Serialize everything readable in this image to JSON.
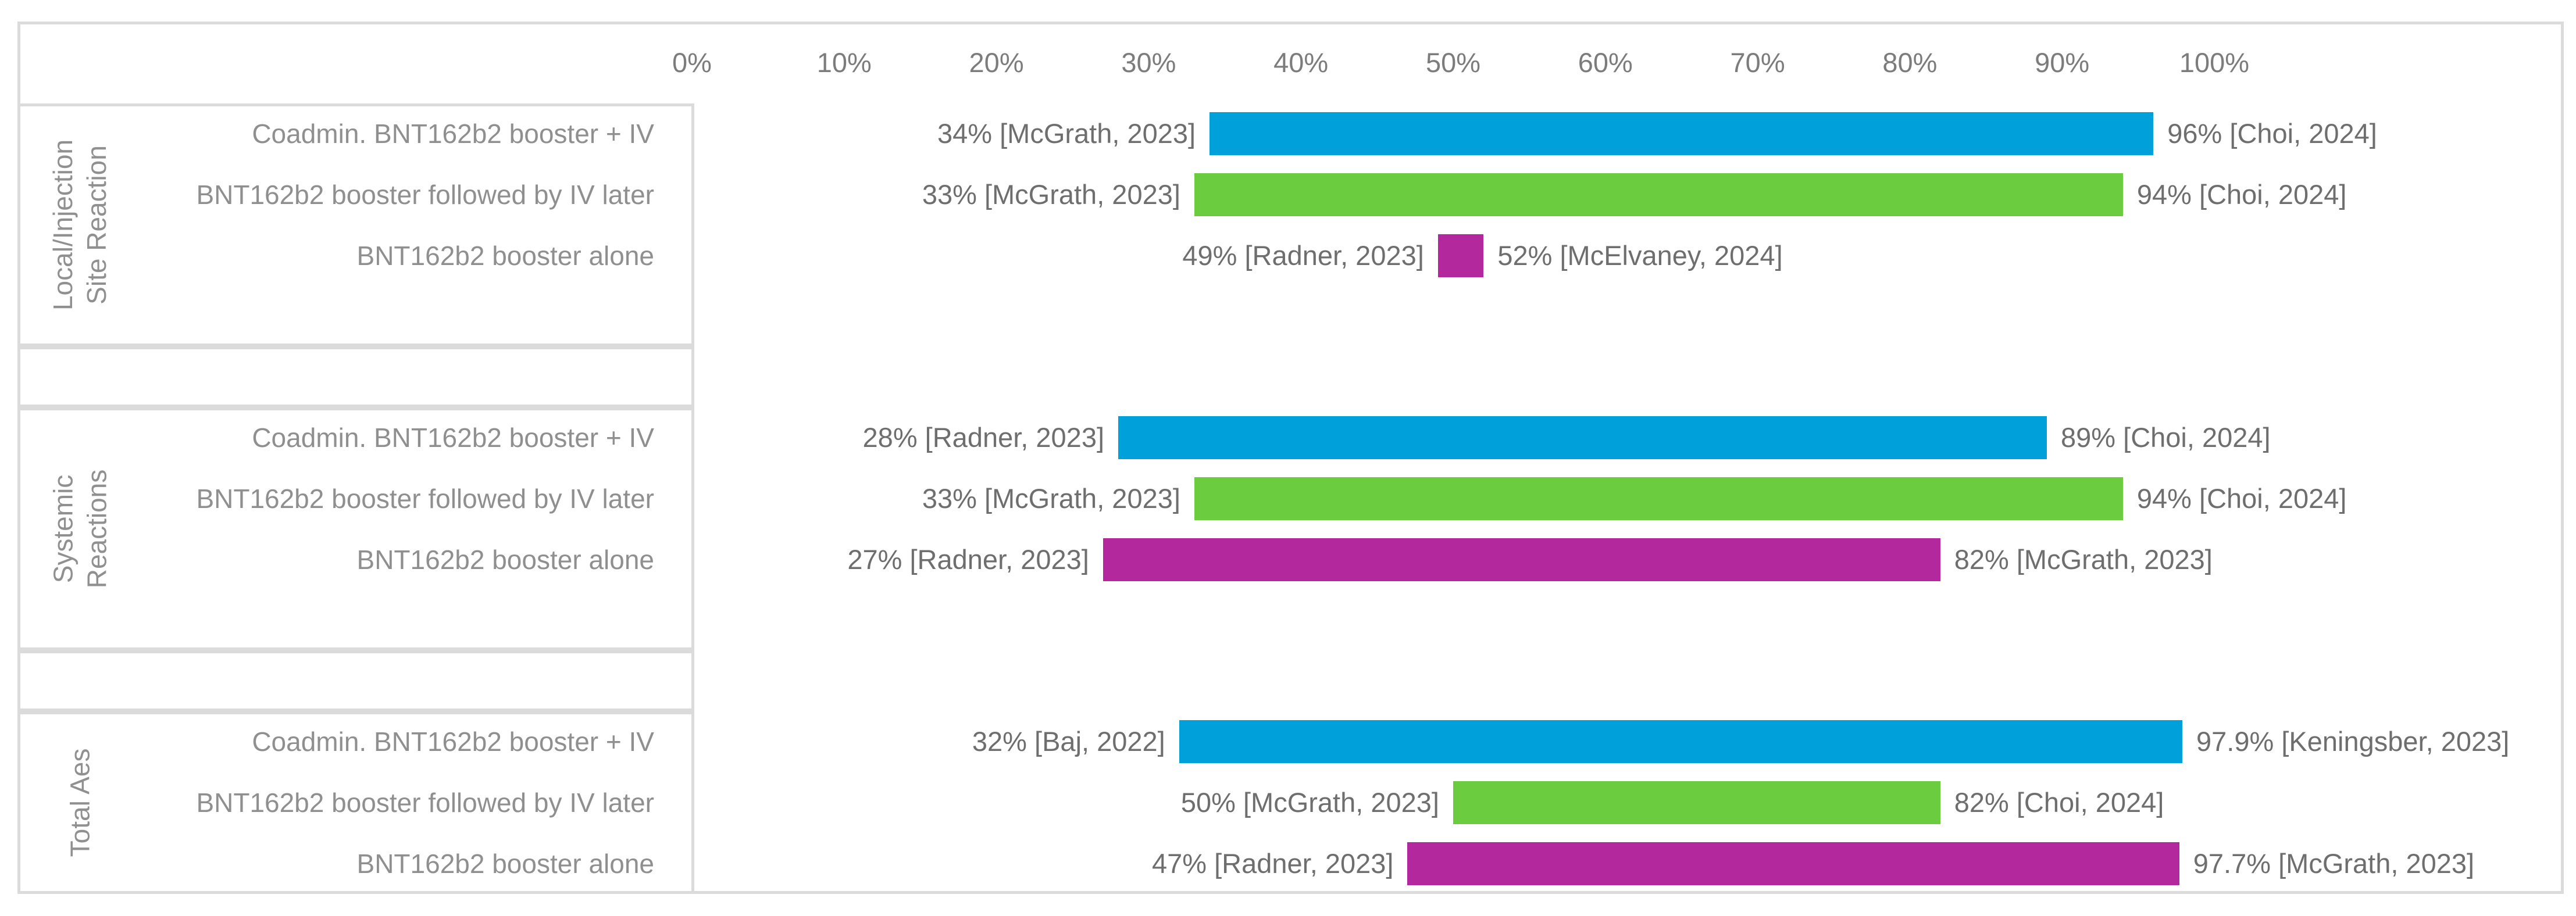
{
  "chart_data": {
    "type": "bar",
    "subtype": "horizontal-range-bar",
    "title": "",
    "legend": "none",
    "axis": {
      "position": "top",
      "unit": "%",
      "min": 0,
      "max": 100,
      "step": 10,
      "tick_labels": [
        "0%",
        "10%",
        "20%",
        "30%",
        "40%",
        "50%",
        "60%",
        "70%",
        "80%",
        "90%",
        "100%"
      ]
    },
    "groups": [
      {
        "label": "Local/Injection Site Reaction",
        "label_lines": [
          "Local/Injection",
          "Site Reaction"
        ],
        "rows": [
          {
            "label": "Coadmin. BNT162b2 booster + IV",
            "series": "coadmin",
            "start": 34,
            "end": 96,
            "start_label": "34% [McGrath, 2023]",
            "end_label": "96% [Choi, 2024]"
          },
          {
            "label": "BNT162b2 booster followed by IV later",
            "series": "followed",
            "start": 33,
            "end": 94,
            "start_label": "33% [McGrath, 2023]",
            "end_label": "94% [Choi, 2024]"
          },
          {
            "label": "BNT162b2 booster alone",
            "series": "alone",
            "start": 49,
            "end": 52,
            "start_label": "49% [Radner, 2023]",
            "end_label": "52% [McElvaney, 2024]"
          }
        ]
      },
      {
        "label": "Systemic Reactions",
        "label_lines": [
          "Systemic",
          "Reactions"
        ],
        "rows": [
          {
            "label": "Coadmin. BNT162b2 booster + IV",
            "series": "coadmin",
            "start": 28,
            "end": 89,
            "start_label": "28% [Radner, 2023]",
            "end_label": "89% [Choi, 2024]"
          },
          {
            "label": "BNT162b2 booster followed by IV later",
            "series": "followed",
            "start": 33,
            "end": 94,
            "start_label": "33% [McGrath, 2023]",
            "end_label": "94% [Choi, 2024]"
          },
          {
            "label": "BNT162b2 booster alone",
            "series": "alone",
            "start": 27,
            "end": 82,
            "start_label": "27% [Radner, 2023]",
            "end_label": "82% [McGrath, 2023]"
          }
        ]
      },
      {
        "label": "Total Aes",
        "label_lines": [
          "Total Aes"
        ],
        "rows": [
          {
            "label": "Coadmin. BNT162b2 booster + IV",
            "series": "coadmin",
            "start": 32,
            "end": 97.9,
            "start_label": "32% [Baj, 2022]",
            "end_label": "97.9% [Keningsber, 2023]"
          },
          {
            "label": "BNT162b2 booster followed by IV later",
            "series": "followed",
            "start": 50,
            "end": 82,
            "start_label": "50% [McGrath, 2023]",
            "end_label": "82% [Choi, 2024]"
          },
          {
            "label": "BNT162b2 booster alone",
            "series": "alone",
            "start": 47,
            "end": 97.7,
            "start_label": "47% [Radner, 2023]",
            "end_label": "97.7% [McGrath, 2023]"
          }
        ]
      }
    ],
    "series_colors": {
      "coadmin": "#00A1DB",
      "followed": "#6CCC3F",
      "alone": "#B4289E"
    },
    "style_colors": {
      "border": "#DBDBDB",
      "axis_text": "#7C7C7C",
      "row_label_text": "#8F8F8F",
      "value_label_text": "#6E6E6E",
      "group_label_text": "#909090"
    }
  }
}
